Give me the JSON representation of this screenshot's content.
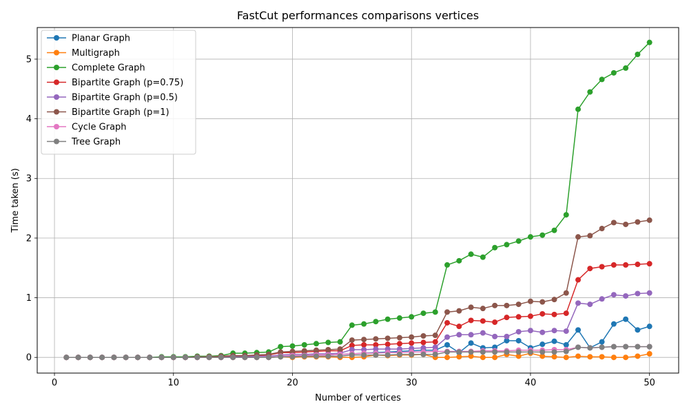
{
  "chart_data": {
    "type": "line",
    "title": "FastCut performances comparisons vertices",
    "xlabel": "Number of vertices",
    "ylabel": "Time taken (s)",
    "xlim": [
      -1.45,
      52.45
    ],
    "ylim": [
      -0.263,
      5.53
    ],
    "xticks": [
      0,
      10,
      20,
      30,
      40,
      50
    ],
    "yticks": [
      0,
      1,
      2,
      3,
      4,
      5
    ],
    "grid": true,
    "legend_position": "top-left",
    "x": [
      1,
      2,
      3,
      4,
      5,
      6,
      7,
      8,
      9,
      10,
      11,
      12,
      13,
      14,
      15,
      16,
      17,
      18,
      19,
      20,
      21,
      22,
      23,
      24,
      25,
      26,
      27,
      28,
      29,
      30,
      31,
      32,
      33,
      34,
      35,
      36,
      37,
      38,
      39,
      40,
      41,
      42,
      43,
      44,
      45,
      46,
      47,
      48,
      49,
      50
    ],
    "series": [
      {
        "name": "Planar Graph",
        "color": "#1f77b4",
        "values": [
          0,
          0,
          0,
          0,
          0,
          0,
          0,
          0,
          0,
          0,
          0,
          0,
          0,
          0,
          0,
          0,
          0,
          0,
          0.01,
          0.02,
          0.03,
          0.04,
          0.04,
          0.05,
          0.06,
          0.07,
          0.08,
          0.09,
          0.1,
          0.11,
          0.12,
          0.12,
          0.21,
          0.08,
          0.24,
          0.16,
          0.17,
          0.28,
          0.28,
          0.16,
          0.22,
          0.27,
          0.21,
          0.46,
          0.16,
          0.26,
          0.56,
          0.64,
          0.46,
          0.52
        ]
      },
      {
        "name": "Multigraph",
        "color": "#ff7f0e",
        "values": [
          0,
          0,
          0,
          0,
          0,
          0,
          0,
          0,
          0,
          0,
          0,
          0,
          0,
          0,
          0,
          0,
          0,
          0,
          0.01,
          0,
          0.01,
          0.01,
          0.01,
          0,
          0,
          0.01,
          0.04,
          0.03,
          0.04,
          0.04,
          0.05,
          0,
          0,
          0.01,
          0.02,
          0,
          0,
          0.05,
          0.02,
          0.07,
          0.02,
          0.01,
          0,
          0.02,
          0.01,
          0.01,
          0,
          0,
          0.02,
          0.06
        ]
      },
      {
        "name": "Complete Graph",
        "color": "#2ca02c",
        "values": [
          0,
          0,
          0,
          0,
          0,
          0,
          0,
          0,
          0.01,
          0.01,
          0.01,
          0.02,
          0.02,
          0.03,
          0.07,
          0.07,
          0.08,
          0.09,
          0.18,
          0.19,
          0.21,
          0.23,
          0.25,
          0.26,
          0.54,
          0.56,
          0.6,
          0.64,
          0.66,
          0.68,
          0.74,
          0.76,
          1.55,
          1.62,
          1.73,
          1.68,
          1.84,
          1.89,
          1.95,
          2.02,
          2.05,
          2.13,
          2.39,
          4.16,
          4.45,
          4.66,
          4.77,
          4.85,
          5.08,
          5.28
        ]
      },
      {
        "name": "Bipartite Graph (p=0.75)",
        "color": "#d62728",
        "values": [
          0,
          0,
          0,
          0,
          0,
          0,
          0,
          0,
          0,
          0,
          0,
          0,
          0.01,
          0.01,
          0.02,
          0.02,
          0.03,
          0.04,
          0.08,
          0.08,
          0.09,
          0.1,
          0.11,
          0.11,
          0.2,
          0.21,
          0.21,
          0.22,
          0.23,
          0.24,
          0.25,
          0.26,
          0.58,
          0.52,
          0.62,
          0.61,
          0.59,
          0.67,
          0.68,
          0.69,
          0.73,
          0.72,
          0.74,
          1.3,
          1.49,
          1.52,
          1.55,
          1.55,
          1.56,
          1.57
        ]
      },
      {
        "name": "Bipartite Graph (p=0.5)",
        "color": "#9467bd",
        "values": [
          0,
          0,
          0,
          0,
          0,
          0,
          0,
          0,
          0,
          0,
          0,
          0,
          0,
          0,
          0.01,
          0.01,
          0.02,
          0.02,
          0.04,
          0.05,
          0.05,
          0.06,
          0.06,
          0.07,
          0.13,
          0.13,
          0.14,
          0.14,
          0.14,
          0.15,
          0.16,
          0.17,
          0.34,
          0.38,
          0.38,
          0.41,
          0.35,
          0.35,
          0.43,
          0.45,
          0.42,
          0.45,
          0.44,
          0.91,
          0.89,
          0.98,
          1.05,
          1.03,
          1.07,
          1.08
        ]
      },
      {
        "name": "Bipartite Graph (p=1)",
        "color": "#8c564b",
        "values": [
          0,
          0,
          0,
          0,
          0,
          0,
          0,
          0,
          0,
          0,
          0,
          0.01,
          0.01,
          0.02,
          0.03,
          0.03,
          0.04,
          0.05,
          0.09,
          0.1,
          0.11,
          0.12,
          0.13,
          0.14,
          0.29,
          0.3,
          0.31,
          0.32,
          0.33,
          0.34,
          0.36,
          0.37,
          0.76,
          0.78,
          0.84,
          0.82,
          0.87,
          0.87,
          0.89,
          0.94,
          0.93,
          0.97,
          1.08,
          2.02,
          2.04,
          2.16,
          2.26,
          2.23,
          2.27,
          2.3
        ]
      },
      {
        "name": "Cycle Graph",
        "color": "#e377c2",
        "values": [
          0,
          0,
          0,
          0,
          0,
          0,
          0,
          0,
          0,
          0,
          0,
          0,
          0,
          0,
          0,
          0,
          0,
          0,
          0.02,
          0.03,
          0.03,
          0.04,
          0.04,
          0.05,
          0.06,
          0.07,
          0.07,
          0.08,
          0.08,
          0.09,
          0.09,
          0.1,
          0.1,
          0.1,
          0.1,
          0.11,
          0.11,
          0.11,
          0.12,
          0.12,
          0.12,
          0.13,
          0.13,
          0.17,
          0.16,
          0.17,
          0.18,
          0.18,
          0.18,
          0.18
        ]
      },
      {
        "name": "Tree Graph",
        "color": "#7f7f7f",
        "values": [
          0,
          0,
          0,
          0,
          0,
          0,
          0,
          0,
          0,
          0,
          0,
          0,
          0,
          0,
          0,
          0,
          0,
          0,
          0.01,
          0.01,
          0.02,
          0.02,
          0.02,
          0.02,
          0.04,
          0.04,
          0.04,
          0.04,
          0.05,
          0.05,
          0.05,
          0.05,
          0.09,
          0.09,
          0.09,
          0.09,
          0.09,
          0.09,
          0.09,
          0.09,
          0.09,
          0.09,
          0.1,
          0.17,
          0.16,
          0.17,
          0.18,
          0.18,
          0.18,
          0.18
        ]
      }
    ]
  }
}
